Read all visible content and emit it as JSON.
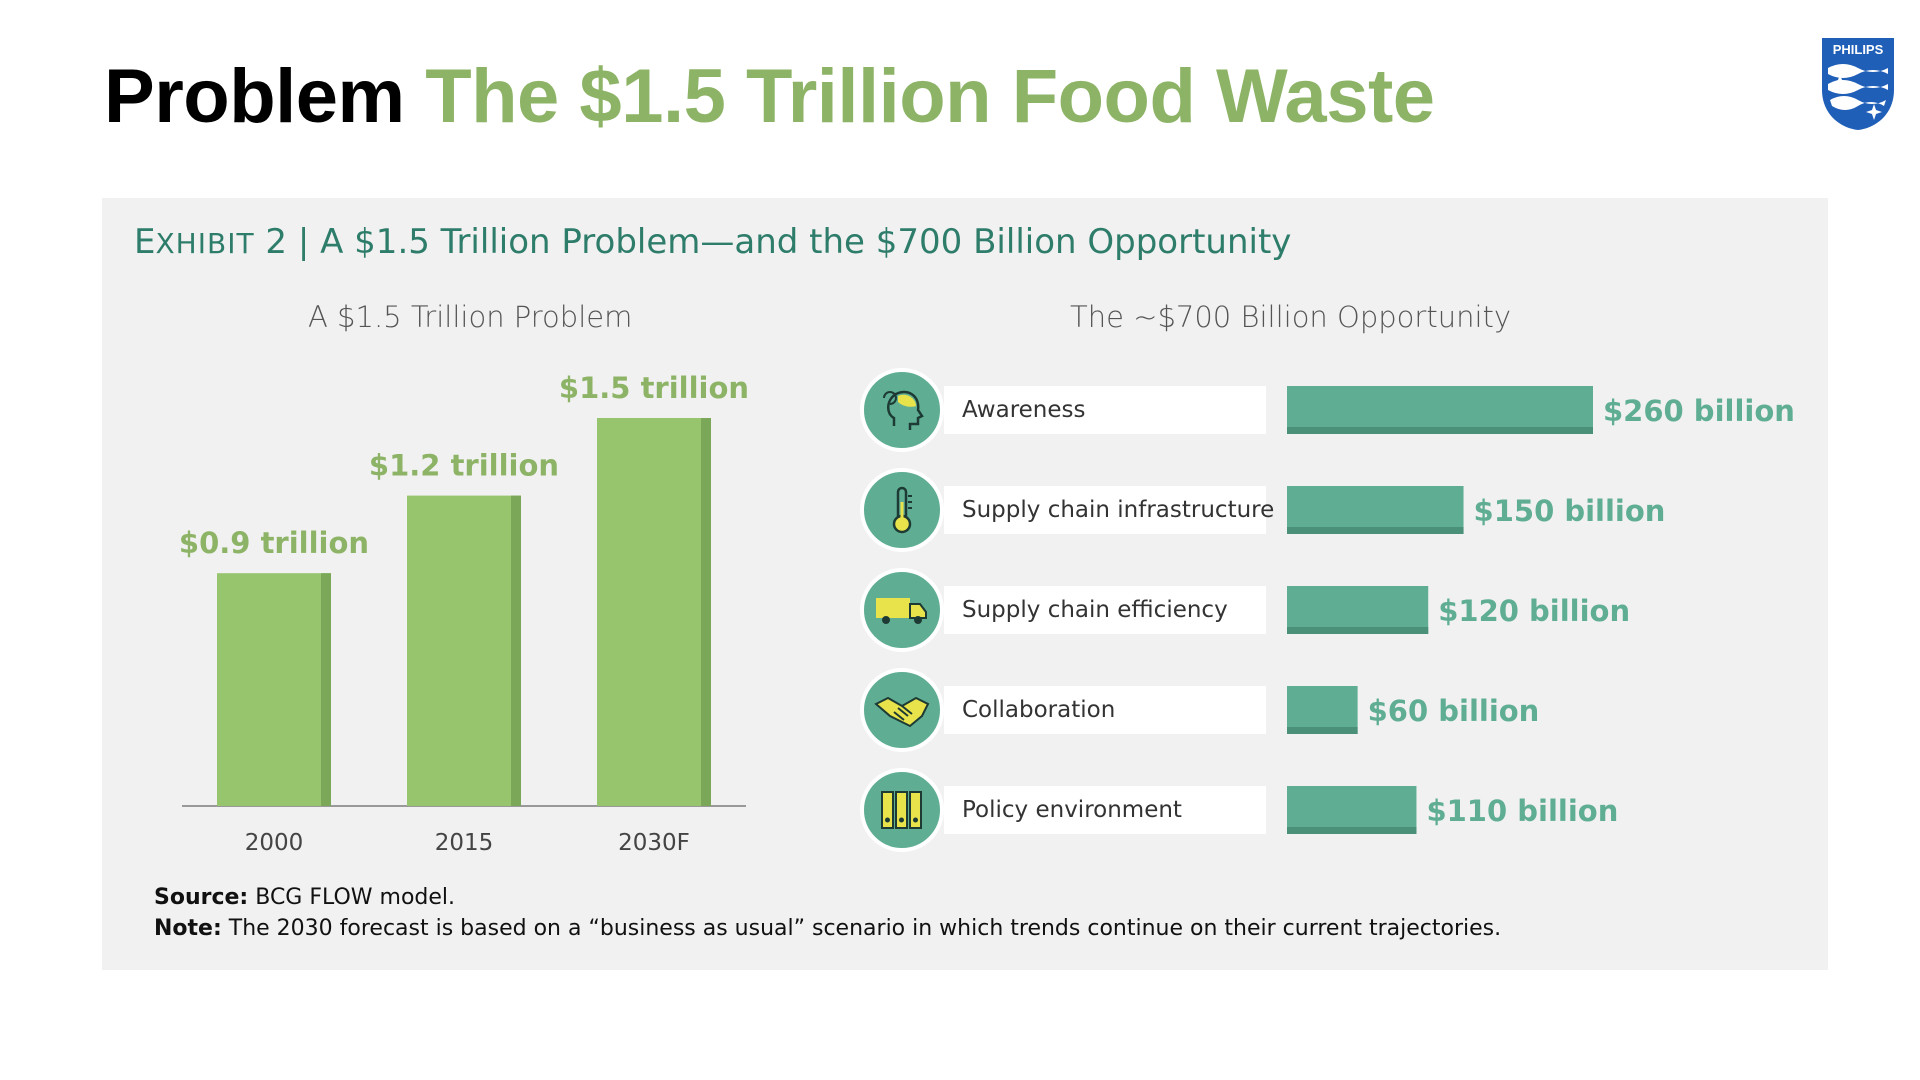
{
  "slide": {
    "title_part1": "Problem",
    "title_part2": "The $1.5 Trillion Food Waste",
    "logo_text": "PHILIPS"
  },
  "exhibit": {
    "prefix_big": "E",
    "prefix_small": "XHIBIT",
    "number": "2",
    "separator": "|",
    "title": "A $1.5 Trillion Problem—and the $700 Billion Opportunity"
  },
  "colors": {
    "bar_green": "#97c56d",
    "bar_green_shadow": "#7aa858",
    "label_green": "#8db466",
    "teal": "#5fae94",
    "teal_shadow": "#4b9179",
    "icon_yellow": "#e8e34a"
  },
  "chart_data": [
    {
      "type": "bar",
      "title": "A $1.5 Trillion Problem",
      "categories": [
        "2000",
        "2015",
        "2030F"
      ],
      "values": [
        0.9,
        1.2,
        1.5
      ],
      "data_labels": [
        "$0.9 trillion",
        "$1.2 trillion",
        "$1.5 trillion"
      ],
      "unit": "trillion USD",
      "ylim": [
        0,
        1.5
      ]
    },
    {
      "type": "bar",
      "orientation": "horizontal",
      "title": "The ~$700 Billion Opportunity",
      "categories": [
        "Awareness",
        "Supply chain infrastructure",
        "Supply chain efficiency",
        "Collaboration",
        "Policy environment"
      ],
      "icons": [
        "head-icon",
        "thermometer-icon",
        "truck-icon",
        "handshake-icon",
        "binders-icon"
      ],
      "values": [
        260,
        150,
        120,
        60,
        110
      ],
      "data_labels": [
        "$260 billion",
        "$150 billion",
        "$120 billion",
        "$60 billion",
        "$110 billion"
      ],
      "unit": "billion USD",
      "xlim": [
        0,
        260
      ]
    }
  ],
  "notes": {
    "source_label": "Source:",
    "source_text": "BCG FLOW model.",
    "note_label": "Note:",
    "note_text": "The 2030 forecast is based on a “business as usual” scenario in which trends continue on their current trajectories."
  }
}
